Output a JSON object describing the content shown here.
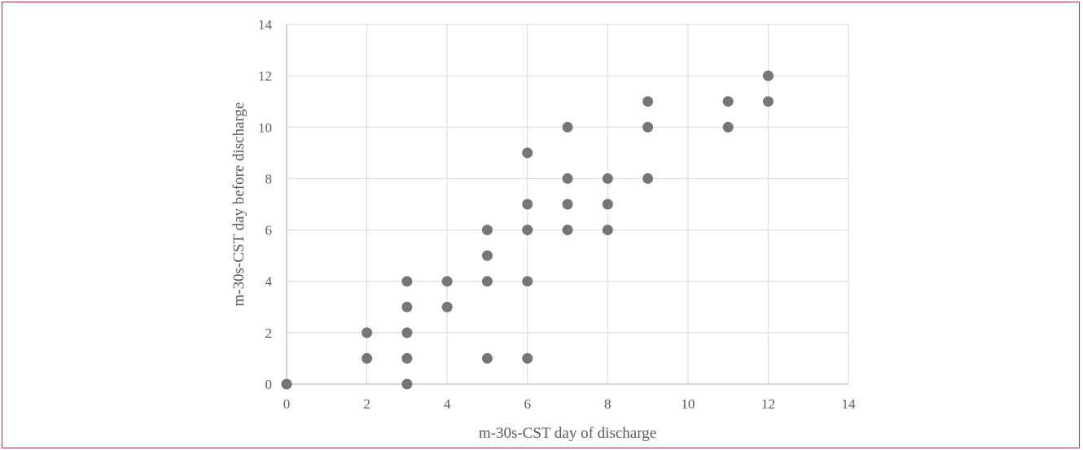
{
  "chart_data": {
    "type": "scatter",
    "title": "",
    "xlabel": "m-30s-CST day of discharge",
    "ylabel": "m-30s-CST day before discharge",
    "xlim": [
      0,
      14
    ],
    "ylim": [
      0,
      14
    ],
    "xticks": [
      "0",
      "2",
      "4",
      "6",
      "8",
      "10",
      "12",
      "14"
    ],
    "yticks": [
      "0",
      "2",
      "4",
      "6",
      "8",
      "10",
      "12",
      "14"
    ],
    "grid": true,
    "legend": "none",
    "marker_color": "#767676",
    "grid_color": "#d9d9d9",
    "points": [
      {
        "x": 0,
        "y": 0
      },
      {
        "x": 2,
        "y": 1
      },
      {
        "x": 2,
        "y": 2
      },
      {
        "x": 3,
        "y": 0
      },
      {
        "x": 3,
        "y": 1
      },
      {
        "x": 3,
        "y": 2
      },
      {
        "x": 3,
        "y": 3
      },
      {
        "x": 3,
        "y": 4
      },
      {
        "x": 4,
        "y": 3
      },
      {
        "x": 4,
        "y": 4
      },
      {
        "x": 5,
        "y": 1
      },
      {
        "x": 5,
        "y": 4
      },
      {
        "x": 5,
        "y": 5
      },
      {
        "x": 5,
        "y": 6
      },
      {
        "x": 6,
        "y": 1
      },
      {
        "x": 6,
        "y": 4
      },
      {
        "x": 6,
        "y": 6
      },
      {
        "x": 6,
        "y": 7
      },
      {
        "x": 6,
        "y": 9
      },
      {
        "x": 7,
        "y": 6
      },
      {
        "x": 7,
        "y": 7
      },
      {
        "x": 7,
        "y": 8
      },
      {
        "x": 7,
        "y": 10
      },
      {
        "x": 8,
        "y": 6
      },
      {
        "x": 8,
        "y": 7
      },
      {
        "x": 8,
        "y": 8
      },
      {
        "x": 9,
        "y": 8
      },
      {
        "x": 9,
        "y": 10
      },
      {
        "x": 9,
        "y": 11
      },
      {
        "x": 11,
        "y": 10
      },
      {
        "x": 11,
        "y": 11
      },
      {
        "x": 12,
        "y": 11
      },
      {
        "x": 12,
        "y": 12
      }
    ]
  }
}
